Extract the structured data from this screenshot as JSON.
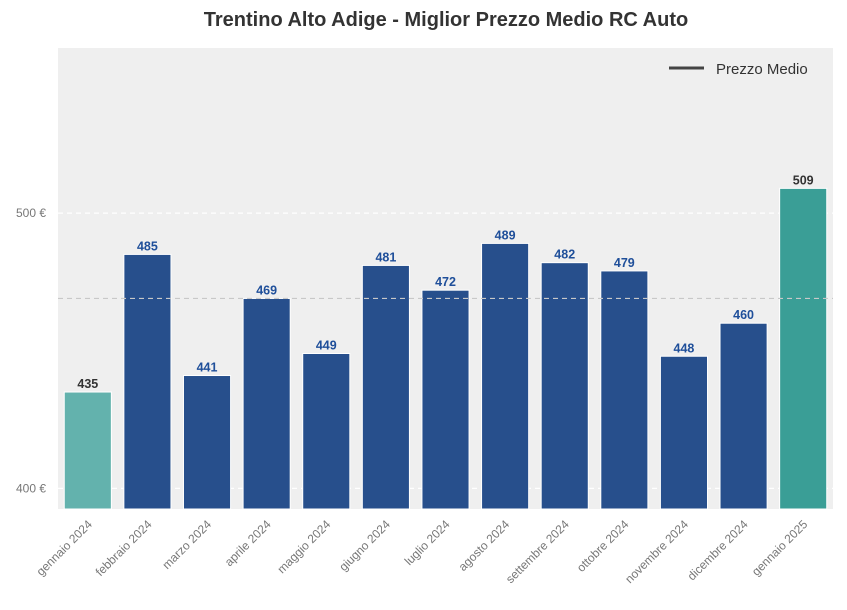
{
  "chart_data": {
    "type": "bar",
    "title": "Trentino Alto Adige - Miglior Prezzo Medio RC Auto",
    "xlabel": "",
    "ylabel": "",
    "categories": [
      "gennaio 2024",
      "febbraio 2024",
      "marzo 2024",
      "aprile 2024",
      "maggio 2024",
      "giugno 2024",
      "luglio 2024",
      "agosto 2024",
      "settembre 2024",
      "ottobre 2024",
      "novembre 2024",
      "dicembre 2024",
      "gennaio 2025"
    ],
    "values": [
      435,
      485,
      441,
      469,
      449,
      481,
      472,
      489,
      482,
      479,
      448,
      460,
      509
    ],
    "value_labels": [
      "435",
      "485",
      "441",
      "469",
      "449",
      "481",
      "472",
      "489",
      "482",
      "479",
      "448",
      "460",
      "509"
    ],
    "bar_colors": [
      "#63b2ad",
      "#274f8c",
      "#274f8c",
      "#274f8c",
      "#274f8c",
      "#274f8c",
      "#274f8c",
      "#274f8c",
      "#274f8c",
      "#274f8c",
      "#274f8c",
      "#274f8c",
      "#3a9e96"
    ],
    "label_colors": [
      "#333333",
      "#1f4f9a",
      "#1f4f9a",
      "#1f4f9a",
      "#1f4f9a",
      "#1f4f9a",
      "#1f4f9a",
      "#1f4f9a",
      "#1f4f9a",
      "#1f4f9a",
      "#1f4f9a",
      "#1f4f9a",
      "#333333"
    ],
    "ylim": [
      392.5,
      560
    ],
    "yticks": [
      400,
      500
    ],
    "ytick_labels": [
      "400 €",
      "500 €"
    ],
    "reference_line": {
      "name": "Prezzo Medio",
      "value": 469
    },
    "legend": {
      "position": "top-right",
      "entries": [
        "Prezzo Medio"
      ]
    },
    "grid": true,
    "background_color": "#efefef",
    "x_tick_rotation": 45
  }
}
